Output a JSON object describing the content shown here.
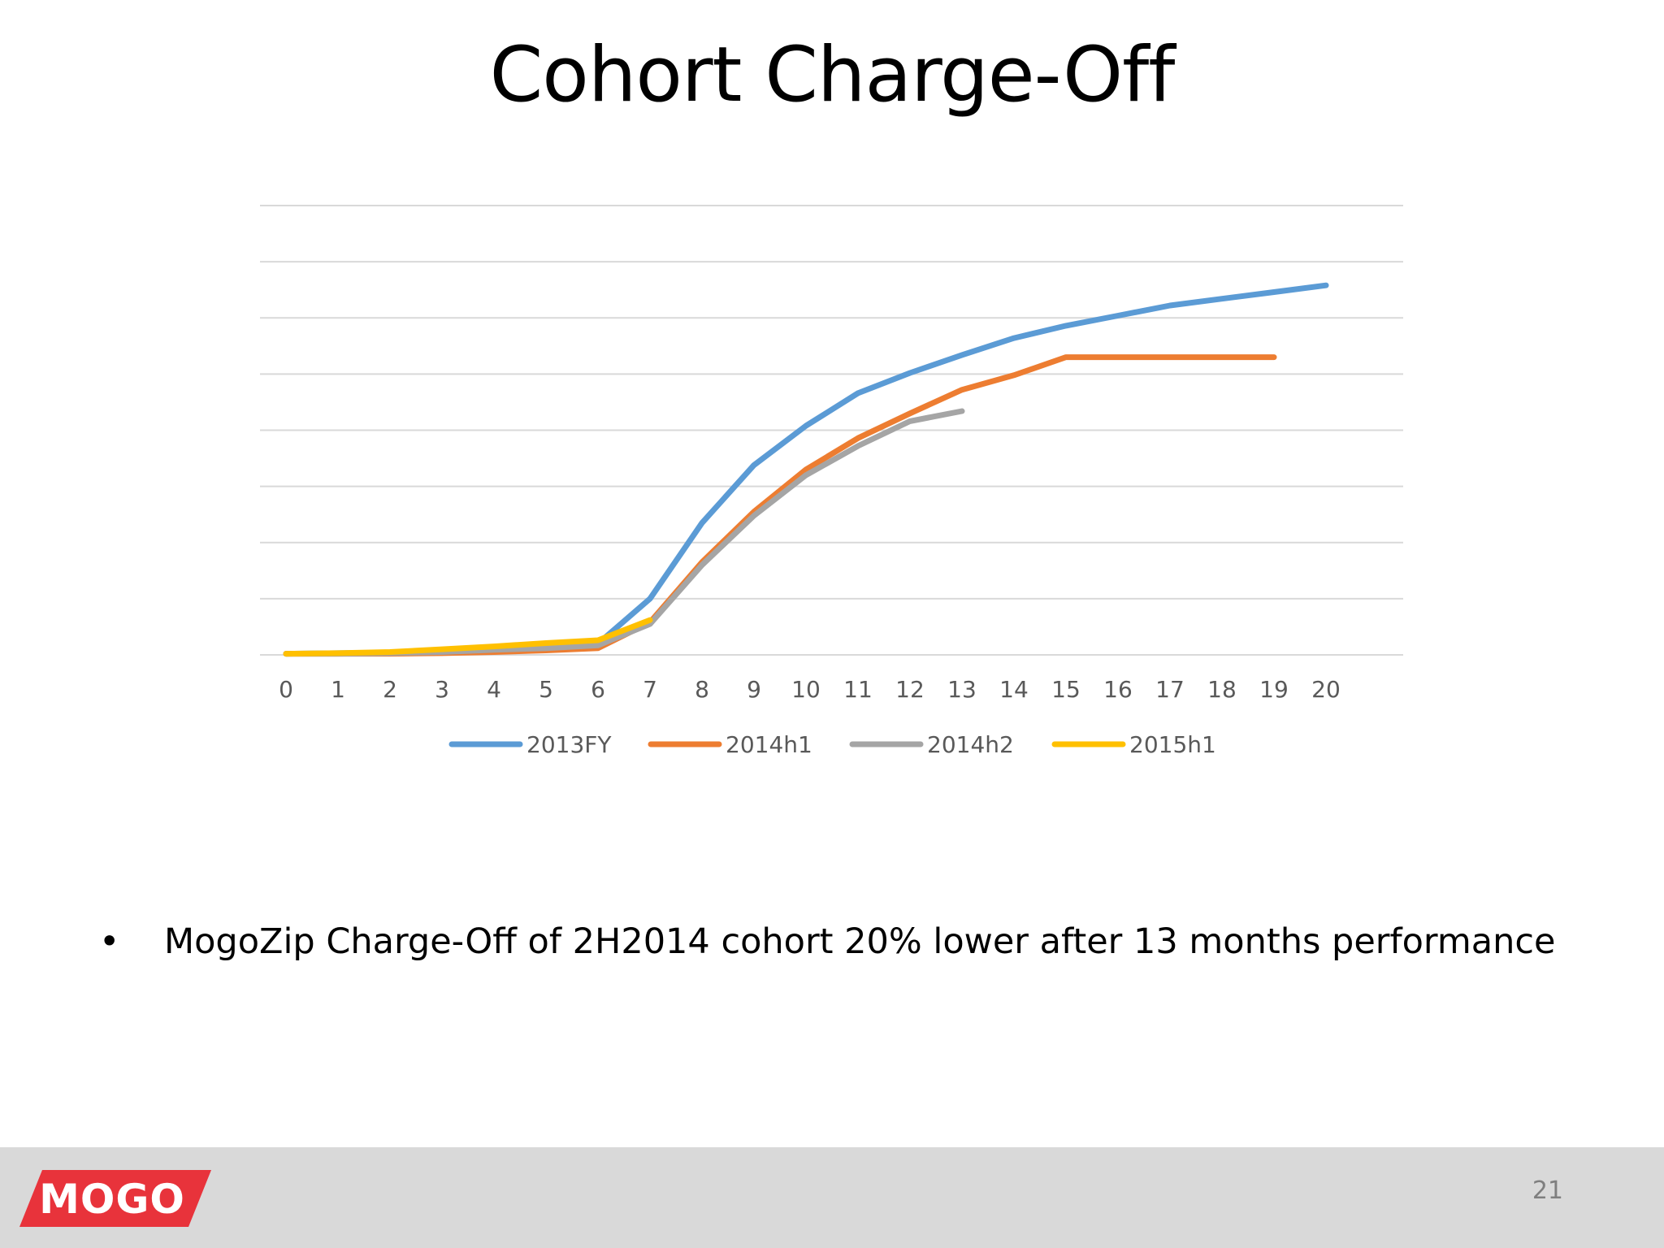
{
  "slide": {
    "title": "Cohort Charge-Off",
    "bullet": "MogoZip Charge-Off of 2H2014 cohort 20% lower after 13 months performance",
    "bullet_symbol": "•",
    "page_number": "21"
  },
  "logo": {
    "text": "MOGO",
    "color": "#e8333b"
  },
  "chart_data": {
    "type": "line",
    "title": "",
    "xlabel": "",
    "ylabel": "",
    "x": [
      0,
      1,
      2,
      3,
      4,
      5,
      6,
      7,
      8,
      9,
      10,
      11,
      12,
      13,
      14,
      15,
      16,
      17,
      18,
      19,
      20
    ],
    "ylim": [
      0,
      8
    ],
    "y_gridlines": 8,
    "y_tick_labels_shown": false,
    "grid": true,
    "legend_position": "bottom",
    "series": [
      {
        "name": "2013FY",
        "color": "#5b9bd5",
        "x": [
          0,
          1,
          2,
          3,
          4,
          5,
          6,
          7,
          8,
          9,
          10,
          11,
          12,
          13,
          14,
          15,
          16,
          17,
          18,
          19,
          20
        ],
        "values": [
          0.02,
          0.03,
          0.04,
          0.06,
          0.1,
          0.15,
          0.2,
          1.0,
          2.35,
          3.38,
          4.08,
          4.66,
          5.02,
          5.34,
          5.64,
          5.86,
          6.04,
          6.22,
          6.34,
          6.46,
          6.58
        ]
      },
      {
        "name": "2014h1",
        "color": "#ed7d31",
        "x": [
          0,
          1,
          2,
          3,
          4,
          5,
          6,
          7,
          8,
          9,
          10,
          11,
          12,
          13,
          14,
          15,
          16,
          17,
          18,
          19
        ],
        "values": [
          0.02,
          0.02,
          0.02,
          0.03,
          0.05,
          0.08,
          0.12,
          0.58,
          1.65,
          2.55,
          3.3,
          3.86,
          4.3,
          4.72,
          4.98,
          5.3,
          5.3,
          5.3,
          5.3,
          5.3
        ]
      },
      {
        "name": "2014h2",
        "color": "#a5a5a5",
        "x": [
          0,
          1,
          2,
          3,
          4,
          5,
          6,
          7,
          8,
          9,
          10,
          11,
          12,
          13
        ],
        "values": [
          0.02,
          0.02,
          0.03,
          0.05,
          0.09,
          0.12,
          0.17,
          0.55,
          1.6,
          2.48,
          3.2,
          3.72,
          4.16,
          4.34
        ]
      },
      {
        "name": "2015h1",
        "color": "#ffc000",
        "x": [
          0,
          1,
          2,
          3,
          4,
          5,
          6,
          7
        ],
        "values": [
          0.02,
          0.03,
          0.05,
          0.1,
          0.15,
          0.21,
          0.26,
          0.62
        ]
      }
    ]
  }
}
